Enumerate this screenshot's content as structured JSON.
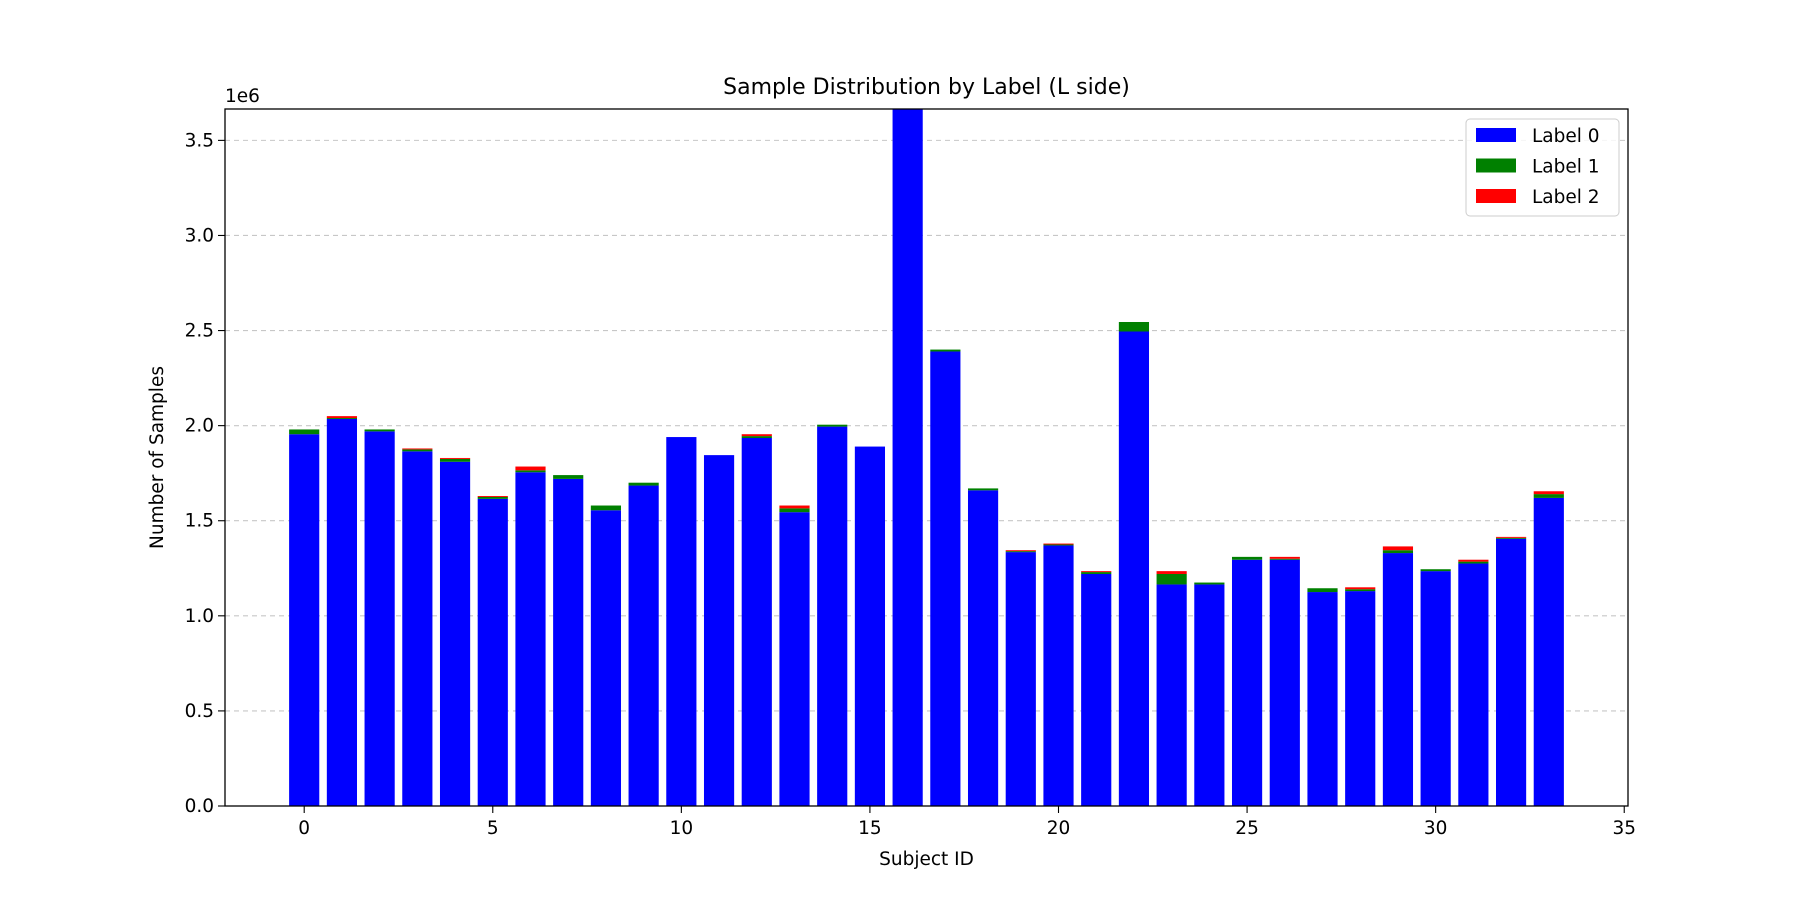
{
  "chart_data": {
    "type": "bar",
    "stacked": true,
    "title": "Sample Distribution by Label (L side)",
    "xlabel": "Subject ID",
    "ylabel": "Number of Samples",
    "y_multiplier_label": "1e6",
    "xlim": [
      -2.1,
      35.1
    ],
    "ylim": [
      0,
      3.665
    ],
    "xticks": [
      "0",
      "5",
      "10",
      "15",
      "20",
      "25",
      "30",
      "35"
    ],
    "yticks": [
      "0.0",
      "0.5",
      "1.0",
      "1.5",
      "2.0",
      "2.5",
      "3.0",
      "3.5"
    ],
    "grid": "y-dashed",
    "legend_position": "top-right",
    "categories": [
      0,
      1,
      2,
      3,
      4,
      5,
      6,
      7,
      8,
      9,
      10,
      11,
      12,
      13,
      14,
      15,
      16,
      17,
      18,
      19,
      20,
      21,
      22,
      23,
      24,
      25,
      26,
      27,
      28,
      29,
      30,
      31,
      32,
      33
    ],
    "series": [
      {
        "name": "Label 0",
        "color": "#0000ff",
        "values": [
          1.955,
          2.035,
          1.97,
          1.865,
          1.81,
          1.615,
          1.755,
          1.72,
          1.555,
          1.685,
          1.94,
          1.845,
          1.935,
          1.545,
          1.995,
          1.89,
          3.665,
          2.39,
          1.66,
          1.335,
          1.37,
          1.22,
          2.495,
          1.165,
          1.165,
          1.295,
          1.295,
          1.125,
          1.13,
          1.33,
          1.235,
          1.275,
          1.405,
          1.62
        ]
      },
      {
        "name": "Label 1",
        "color": "#008000",
        "values": [
          0.025,
          0.005,
          0.01,
          0.01,
          0.015,
          0.01,
          0.01,
          0.02,
          0.025,
          0.015,
          0.0,
          0.0,
          0.01,
          0.02,
          0.01,
          0.0,
          0.01,
          0.01,
          0.01,
          0.005,
          0.005,
          0.01,
          0.05,
          0.055,
          0.01,
          0.015,
          0.005,
          0.02,
          0.01,
          0.015,
          0.01,
          0.01,
          0.005,
          0.02
        ]
      },
      {
        "name": "Label 2",
        "color": "#ff0000",
        "values": [
          0.0,
          0.01,
          0.0,
          0.005,
          0.005,
          0.005,
          0.02,
          0.0,
          0.0,
          0.0,
          0.0,
          0.0,
          0.01,
          0.015,
          0.0,
          0.0,
          0.0,
          0.0,
          0.0,
          0.005,
          0.005,
          0.005,
          0.0,
          0.015,
          0.0,
          0.0,
          0.01,
          0.0,
          0.01,
          0.02,
          0.0,
          0.01,
          0.005,
          0.015
        ]
      }
    ]
  }
}
